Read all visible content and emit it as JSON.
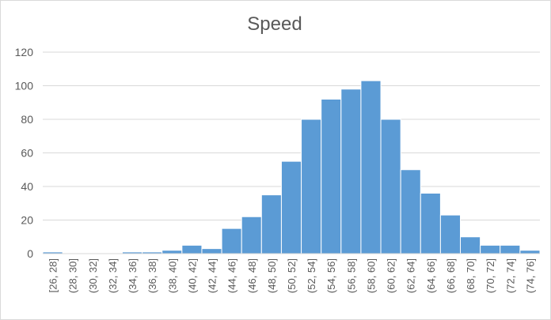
{
  "chart_data": {
    "type": "bar",
    "title": "Speed",
    "xlabel": "",
    "ylabel": "",
    "ylim": [
      0,
      120
    ],
    "yticks": [
      0,
      20,
      40,
      60,
      80,
      100,
      120
    ],
    "grid": true,
    "legend": "none",
    "bar_color": "#5b9bd5",
    "categories": [
      "[26, 28]",
      "(28, 30]",
      "(30, 32]",
      "(32, 34]",
      "(34, 36]",
      "(36, 38]",
      "(38, 40]",
      "(40, 42]",
      "(42, 44]",
      "(44, 46]",
      "(46, 48]",
      "(48, 50]",
      "(50, 52]",
      "(52, 54]",
      "(54, 56]",
      "(56, 58]",
      "(58, 60]",
      "(60, 62]",
      "(62, 64]",
      "(64, 66]",
      "(66, 68]",
      "(68, 70]",
      "(70, 72]",
      "(72, 74]",
      "(74, 76]"
    ],
    "values": [
      1,
      0,
      0,
      0,
      1,
      1,
      2,
      5,
      3,
      15,
      22,
      35,
      55,
      80,
      92,
      98,
      103,
      80,
      50,
      36,
      23,
      10,
      5,
      5,
      2
    ]
  }
}
